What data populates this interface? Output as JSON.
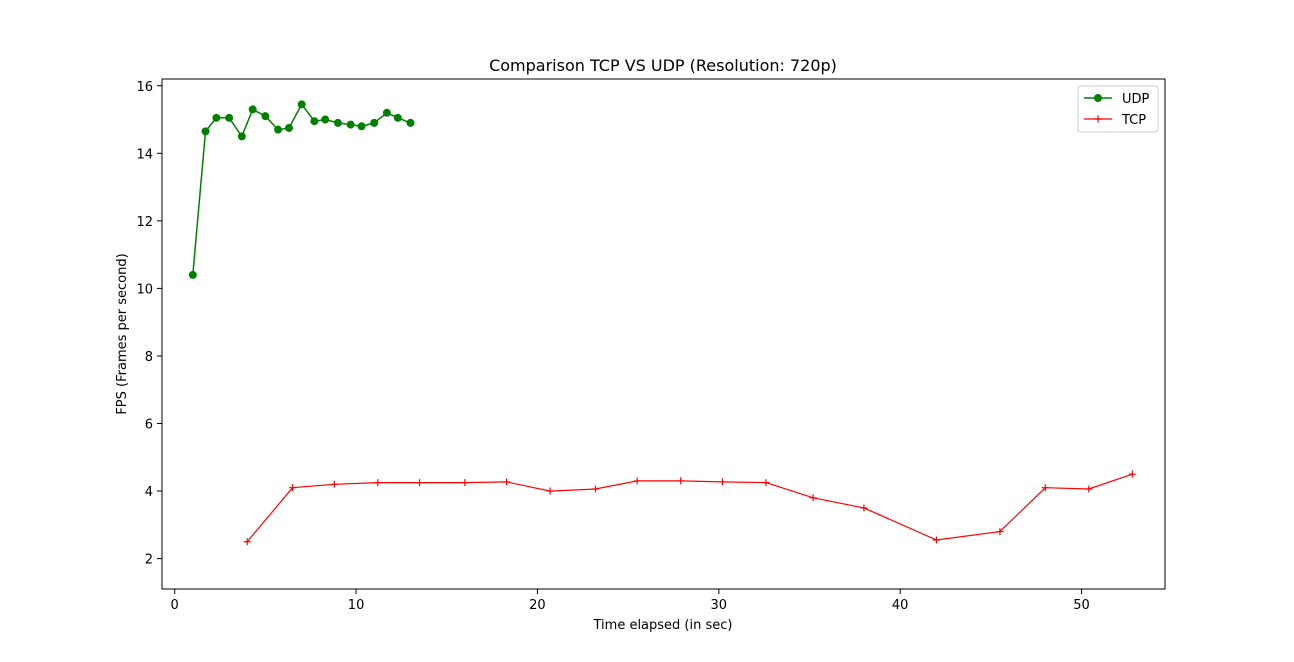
{
  "chart_data": {
    "type": "line",
    "title": "Comparison TCP VS UDP (Resolution: 720p)",
    "xlabel": "Time elapsed (in sec)",
    "ylabel": "FPS (Frames per second)",
    "xlim": [
      -0.7,
      54.6
    ],
    "ylim": [
      1.1,
      16.2
    ],
    "xticks": [
      0,
      10,
      20,
      30,
      40,
      50
    ],
    "yticks": [
      2,
      4,
      6,
      8,
      10,
      12,
      14,
      16
    ],
    "grid": false,
    "legend_position": "top-right",
    "series": [
      {
        "name": "UDP",
        "color": "#008000",
        "marker": "circle",
        "x": [
          1.0,
          1.7,
          2.3,
          3.0,
          3.7,
          4.3,
          5.0,
          5.7,
          6.3,
          7.0,
          7.7,
          8.3,
          9.0,
          9.7,
          10.3,
          11.0,
          11.7,
          12.3,
          13.0
        ],
        "y": [
          10.4,
          14.65,
          15.05,
          15.05,
          14.5,
          15.3,
          15.1,
          14.7,
          14.75,
          15.45,
          14.95,
          15.0,
          14.9,
          14.85,
          14.8,
          14.9,
          15.2,
          15.05,
          14.9
        ]
      },
      {
        "name": "TCP",
        "color": "#ff0000",
        "marker": "plus",
        "x": [
          4.0,
          6.5,
          8.8,
          11.2,
          13.5,
          16.0,
          18.3,
          20.7,
          23.2,
          25.5,
          27.9,
          30.2,
          32.6,
          35.2,
          38.0,
          42.0,
          45.5,
          48.0,
          50.4,
          52.8
        ],
        "y": [
          2.5,
          4.1,
          4.2,
          4.25,
          4.25,
          4.25,
          4.27,
          4.0,
          4.06,
          4.3,
          4.3,
          4.27,
          4.25,
          3.8,
          3.5,
          2.55,
          2.8,
          4.1,
          4.06,
          4.5
        ]
      }
    ]
  }
}
